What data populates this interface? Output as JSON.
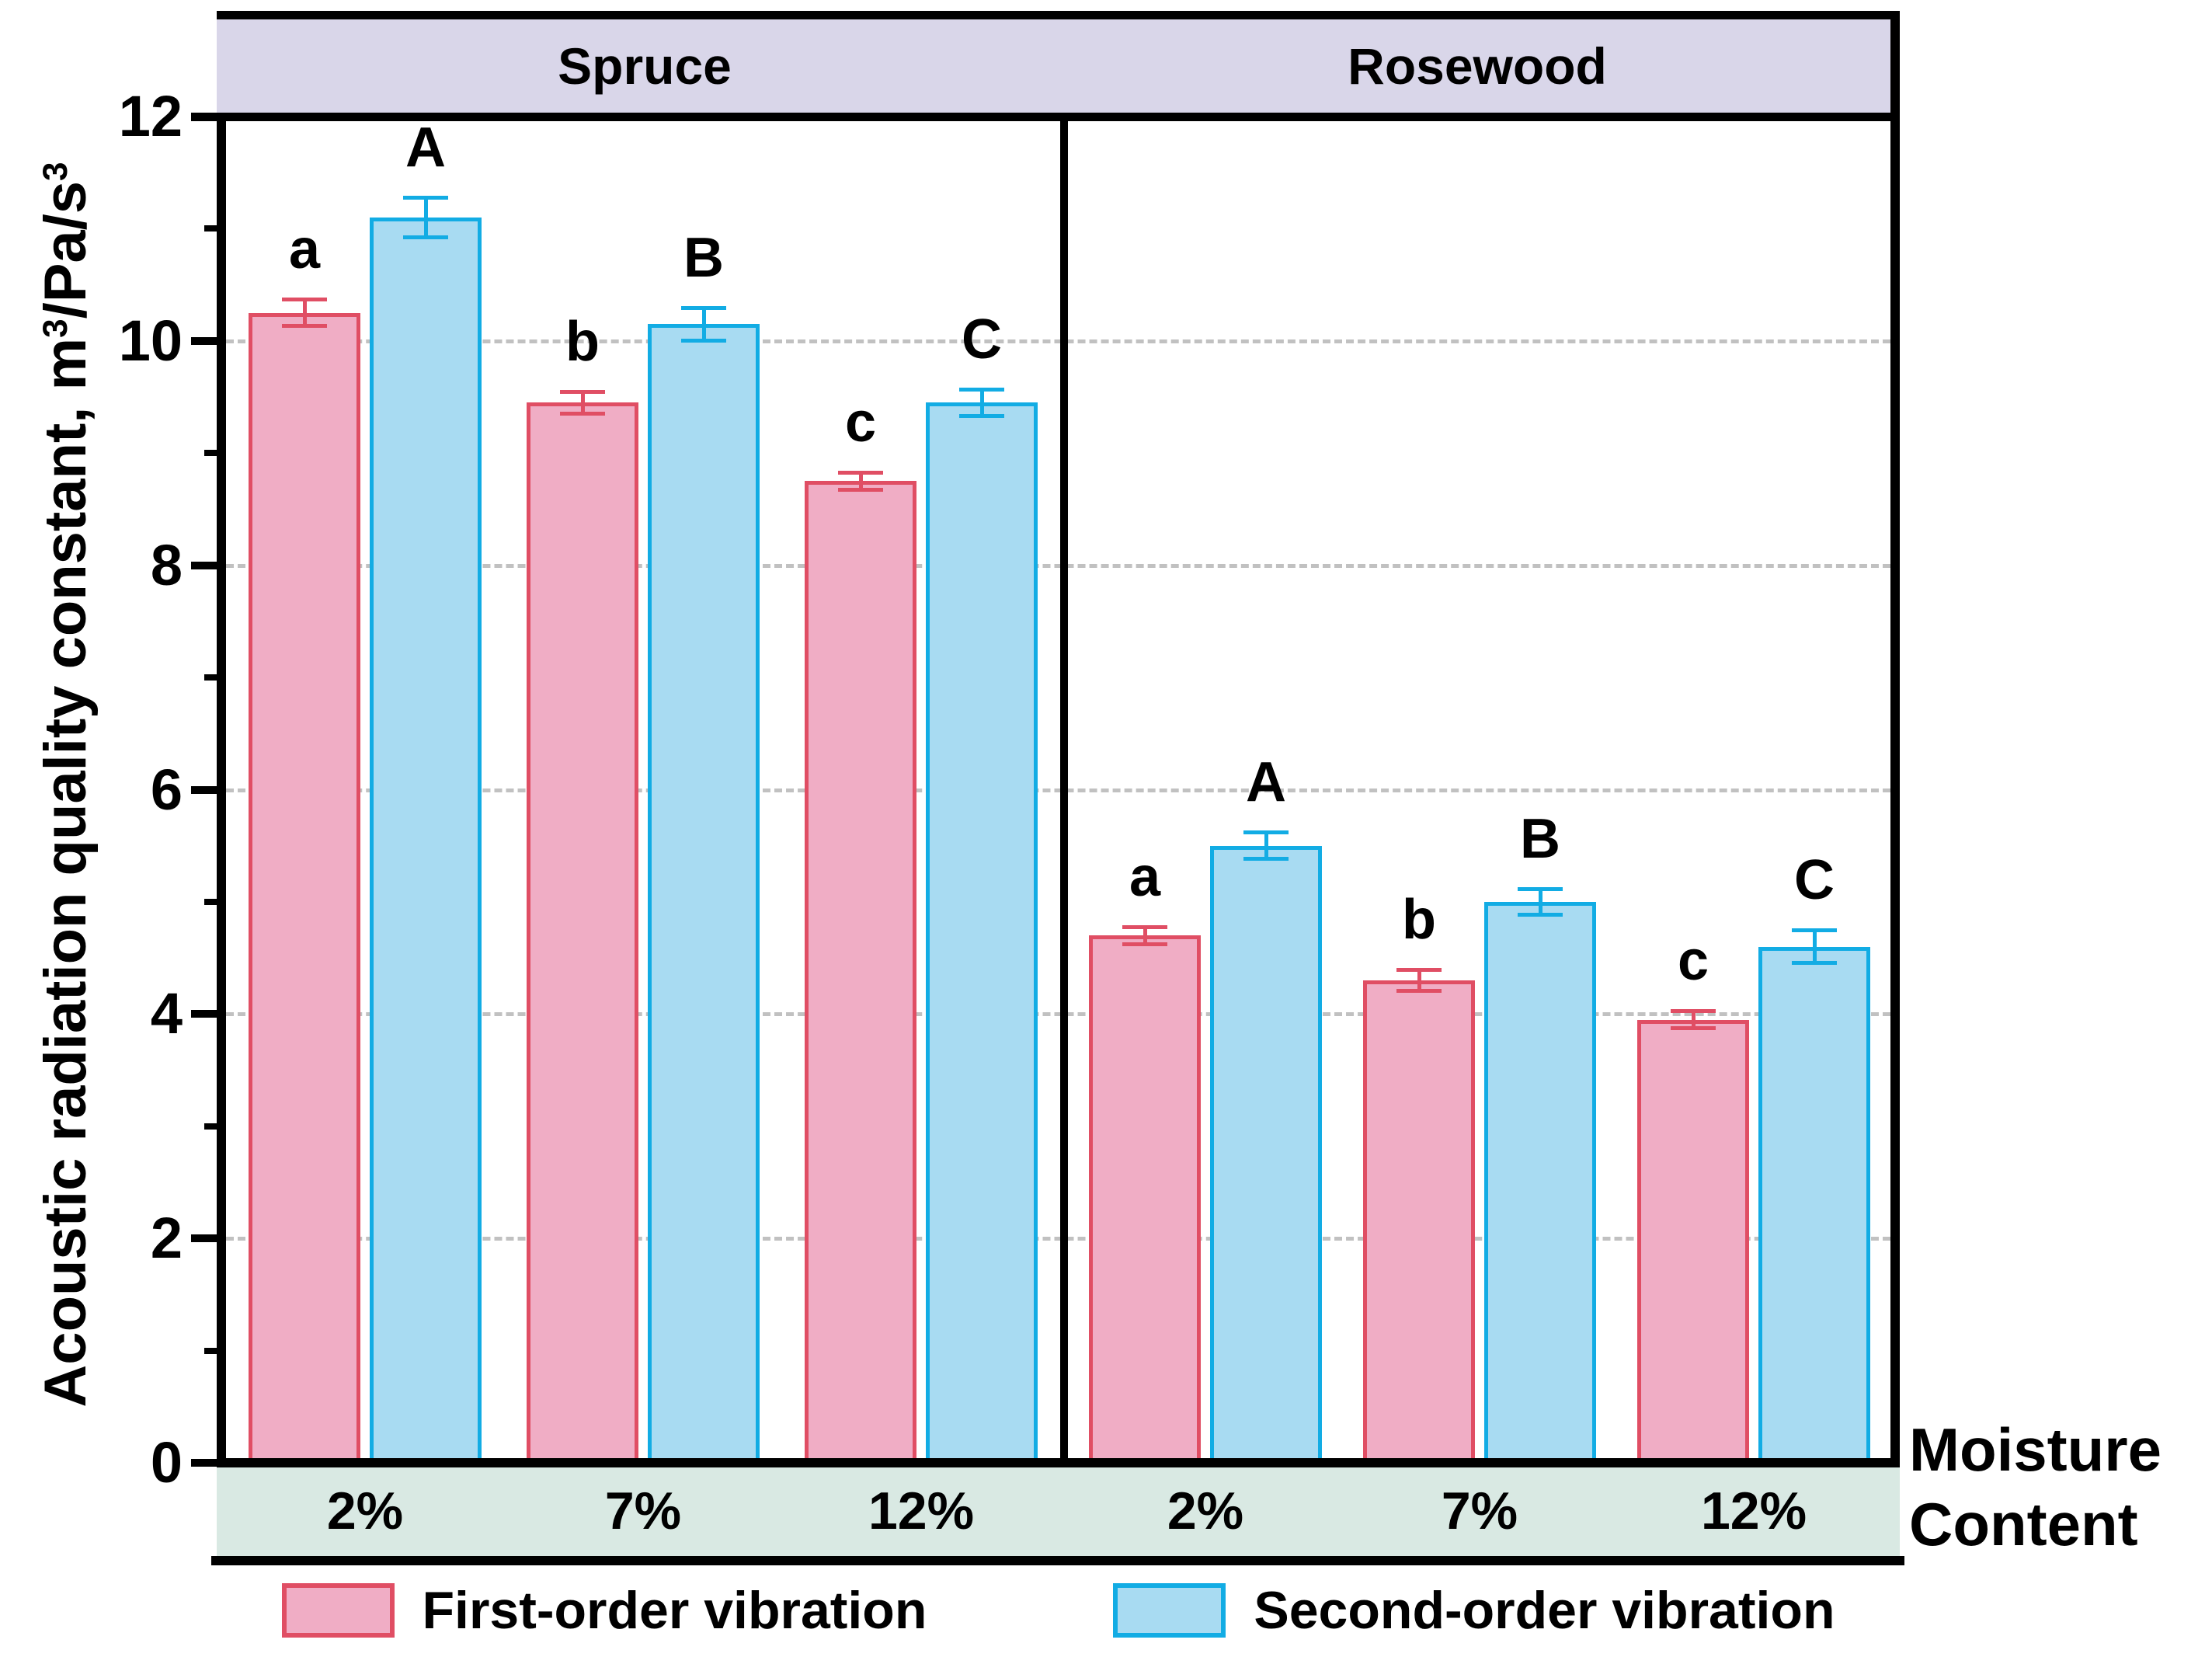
{
  "header": {
    "left_panel": "Spruce",
    "right_panel": "Rosewood"
  },
  "y_axis": {
    "title_parts": [
      "Acoustic radiation quality constant, m",
      "3",
      "/Pa/s",
      "3"
    ],
    "title_full": "Acoustic radiation quality constant, m³/Pa/s³"
  },
  "x_axis": {
    "label_line1": "Moisture",
    "label_line2": "Content"
  },
  "legend": {
    "items": [
      {
        "label": "First-order vibration",
        "fill": "#f0adc5",
        "border": "#e04e64"
      },
      {
        "label": "Second-order vibration",
        "fill": "#a8dbf2",
        "border": "#12ace4"
      }
    ]
  },
  "colors": {
    "header_band": "#d9d6e9",
    "footer_band": "#d9e9e3",
    "gridline": "#c1c1c1",
    "axis": "#000000"
  },
  "chart_data": {
    "type": "bar",
    "title": "",
    "ylabel": "Acoustic radiation quality constant, m³/Pa/s³",
    "xlabel": "Moisture Content",
    "ylim": [
      0,
      12
    ],
    "yticks": [
      0,
      2,
      4,
      6,
      8,
      10,
      12
    ],
    "minor_ticks": [
      1,
      3,
      5,
      7,
      9,
      11
    ],
    "grid_values": [
      2,
      4,
      6,
      8,
      10
    ],
    "grid_style": "dashed",
    "legend_position": "bottom",
    "panels": [
      {
        "name": "Spruce",
        "categories": [
          "2%",
          "7%",
          "12%"
        ],
        "series": [
          {
            "name": "First-order vibration",
            "values": [
              10.25,
              9.45,
              8.75
            ],
            "errors": [
              0.12,
              0.1,
              0.08
            ],
            "letters": [
              "a",
              "b",
              "c"
            ]
          },
          {
            "name": "Second-order vibration",
            "values": [
              11.1,
              10.15,
              9.45
            ],
            "errors": [
              0.18,
              0.15,
              0.12
            ],
            "letters": [
              "A",
              "B",
              "C"
            ]
          }
        ]
      },
      {
        "name": "Rosewood",
        "categories": [
          "2%",
          "7%",
          "12%"
        ],
        "series": [
          {
            "name": "First-order vibration",
            "values": [
              4.7,
              4.3,
              3.95
            ],
            "errors": [
              0.08,
              0.1,
              0.08
            ],
            "letters": [
              "a",
              "b",
              "c"
            ]
          },
          {
            "name": "Second-order vibration",
            "values": [
              5.5,
              5.0,
              4.6
            ],
            "errors": [
              0.12,
              0.12,
              0.15
            ],
            "letters": [
              "A",
              "B",
              "C"
            ]
          }
        ]
      }
    ]
  }
}
